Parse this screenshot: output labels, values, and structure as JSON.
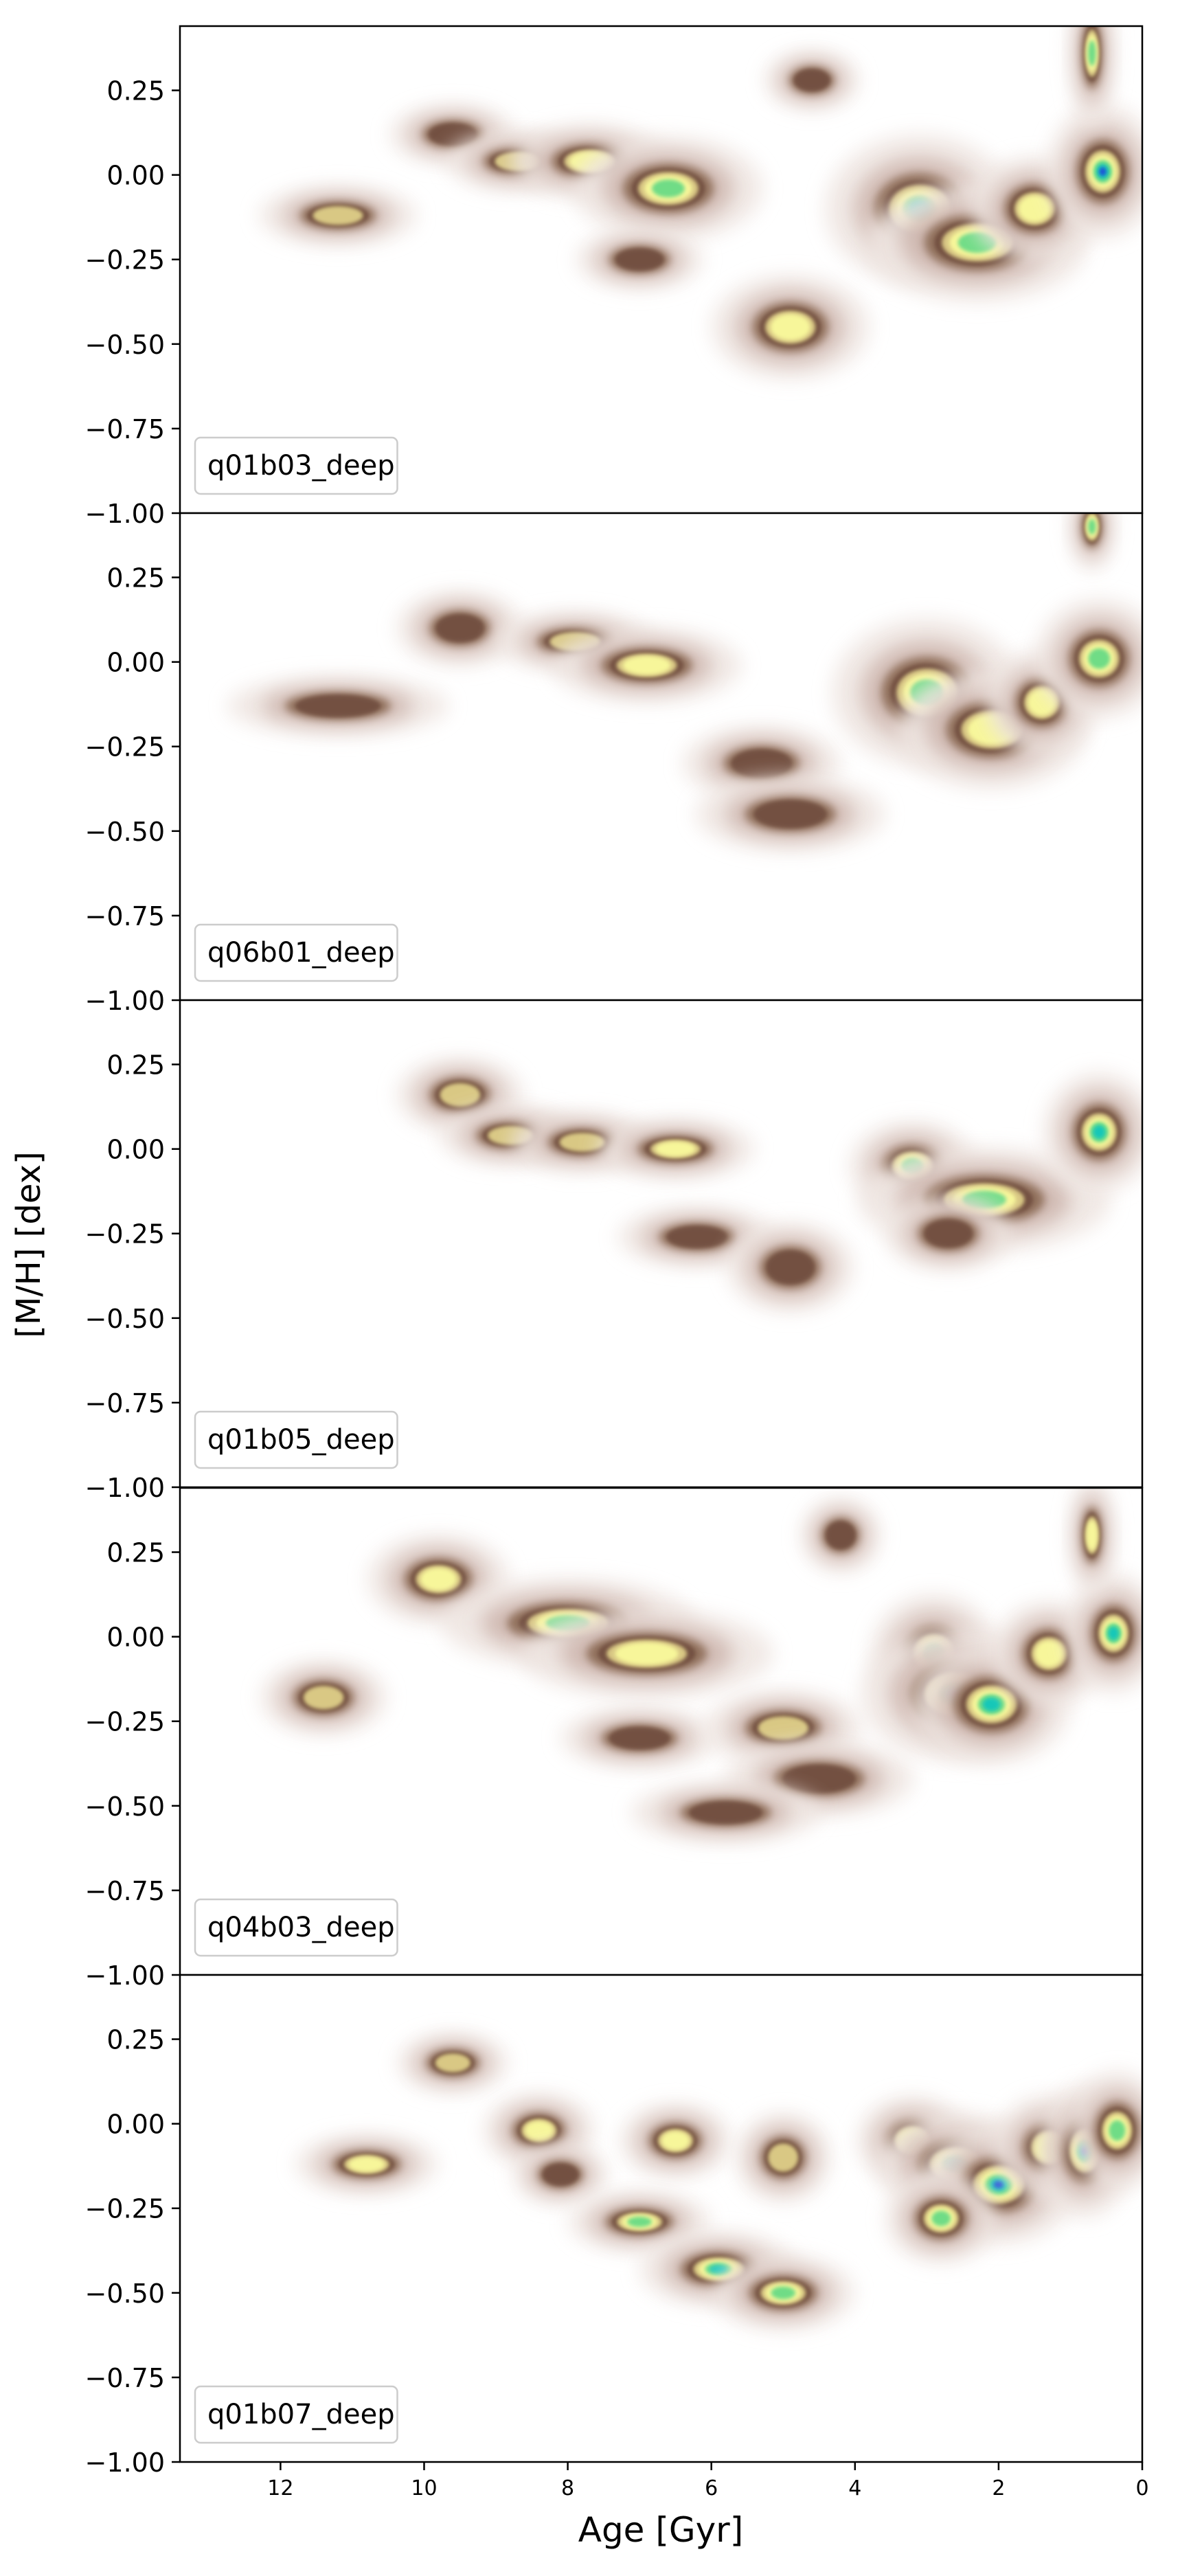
{
  "figure": {
    "ylabel": "[M/H] [dex]",
    "xlabel": "Age [Gyr]"
  },
  "chart_data": {
    "type": "heatmap",
    "xlabel": "Age [Gyr]",
    "ylabel": "[M/H] [dex]",
    "xlim": [
      13.4,
      0
    ],
    "ylim": [
      -1.0,
      0.44
    ],
    "x_ticks": [
      12,
      10,
      8,
      6,
      4,
      2,
      0
    ],
    "x_tick_labels": [
      "12",
      "10",
      "8",
      "6",
      "4",
      "2",
      "0"
    ],
    "y_ticks": [
      0.25,
      0.0,
      -0.25,
      -0.5,
      -0.75,
      -1.0
    ],
    "y_tick_labels": [
      "0.25",
      "0.00",
      "−0.25",
      "−0.50",
      "−0.75",
      "−1.00"
    ],
    "colormap": {
      "stops": [
        "#ffffff",
        "#efe6e2",
        "#c8aea6",
        "#8b6a55",
        "#6e4c3c",
        "#d9c884",
        "#f7f69a",
        "#6fdc86",
        "#16c7b8",
        "#1f4fd8"
      ],
      "description": "low density white through brown and yellow to green and blue at peak"
    },
    "panels": [
      {
        "label": "q01b03_deep",
        "blobs": [
          {
            "age": 11.2,
            "mh": -0.12,
            "w": 0.5,
            "h": 0.04,
            "level": 0.45
          },
          {
            "age": 9.6,
            "mh": 0.12,
            "w": 0.4,
            "h": 0.04,
            "level": 0.35
          },
          {
            "age": 8.7,
            "mh": 0.04,
            "w": 0.45,
            "h": 0.04,
            "level": 0.45
          },
          {
            "age": 7.7,
            "mh": 0.04,
            "w": 0.5,
            "h": 0.05,
            "level": 0.5
          },
          {
            "age": 6.6,
            "mh": -0.04,
            "w": 0.6,
            "h": 0.07,
            "level": 0.6
          },
          {
            "age": 7.0,
            "mh": -0.25,
            "w": 0.4,
            "h": 0.04,
            "level": 0.3
          },
          {
            "age": 4.9,
            "mh": -0.45,
            "w": 0.5,
            "h": 0.07,
            "level": 0.5
          },
          {
            "age": 4.6,
            "mh": 0.28,
            "w": 0.3,
            "h": 0.04,
            "level": 0.3
          },
          {
            "age": 3.1,
            "mh": -0.1,
            "w": 0.6,
            "h": 0.1,
            "level": 0.8
          },
          {
            "age": 2.3,
            "mh": -0.2,
            "w": 0.7,
            "h": 0.08,
            "level": 0.6
          },
          {
            "age": 1.5,
            "mh": -0.1,
            "w": 0.4,
            "h": 0.07,
            "level": 0.55
          },
          {
            "age": 0.55,
            "mh": 0.01,
            "w": 0.35,
            "h": 0.09,
            "level": 0.85
          },
          {
            "age": 0.7,
            "mh": 0.36,
            "w": 0.14,
            "h": 0.1,
            "level": 0.7
          }
        ]
      },
      {
        "label": "q06b01_deep",
        "blobs": [
          {
            "age": 11.2,
            "mh": -0.13,
            "w": 0.7,
            "h": 0.04,
            "level": 0.35
          },
          {
            "age": 9.5,
            "mh": 0.1,
            "w": 0.4,
            "h": 0.05,
            "level": 0.35
          },
          {
            "age": 7.9,
            "mh": 0.06,
            "w": 0.5,
            "h": 0.04,
            "level": 0.45
          },
          {
            "age": 6.9,
            "mh": -0.01,
            "w": 0.6,
            "h": 0.05,
            "level": 0.5
          },
          {
            "age": 5.3,
            "mh": -0.3,
            "w": 0.5,
            "h": 0.05,
            "level": 0.3
          },
          {
            "age": 4.9,
            "mh": -0.45,
            "w": 0.6,
            "h": 0.05,
            "level": 0.35
          },
          {
            "age": 3.0,
            "mh": -0.09,
            "w": 0.6,
            "h": 0.1,
            "level": 0.7
          },
          {
            "age": 2.1,
            "mh": -0.2,
            "w": 0.6,
            "h": 0.08,
            "level": 0.55
          },
          {
            "age": 1.4,
            "mh": -0.12,
            "w": 0.35,
            "h": 0.07,
            "level": 0.5
          },
          {
            "age": 0.6,
            "mh": 0.01,
            "w": 0.4,
            "h": 0.08,
            "level": 0.6
          },
          {
            "age": 0.7,
            "mh": 0.4,
            "w": 0.14,
            "h": 0.06,
            "level": 0.6
          }
        ]
      },
      {
        "label": "q01b05_deep",
        "blobs": [
          {
            "age": 9.5,
            "mh": 0.16,
            "w": 0.4,
            "h": 0.05,
            "level": 0.45
          },
          {
            "age": 8.8,
            "mh": 0.04,
            "w": 0.45,
            "h": 0.04,
            "level": 0.45
          },
          {
            "age": 7.8,
            "mh": 0.02,
            "w": 0.45,
            "h": 0.04,
            "level": 0.45
          },
          {
            "age": 6.5,
            "mh": 0.0,
            "w": 0.5,
            "h": 0.04,
            "level": 0.5
          },
          {
            "age": 6.2,
            "mh": -0.26,
            "w": 0.5,
            "h": 0.04,
            "level": 0.3
          },
          {
            "age": 4.9,
            "mh": -0.35,
            "w": 0.4,
            "h": 0.06,
            "level": 0.35
          },
          {
            "age": 3.2,
            "mh": -0.05,
            "w": 0.4,
            "h": 0.06,
            "level": 0.6
          },
          {
            "age": 2.2,
            "mh": -0.15,
            "w": 0.8,
            "h": 0.07,
            "level": 0.6
          },
          {
            "age": 2.7,
            "mh": -0.25,
            "w": 0.4,
            "h": 0.05,
            "level": 0.35
          },
          {
            "age": 0.6,
            "mh": 0.05,
            "w": 0.35,
            "h": 0.08,
            "level": 0.8
          }
        ]
      },
      {
        "label": "q04b03_deep",
        "blobs": [
          {
            "age": 11.4,
            "mh": -0.18,
            "w": 0.4,
            "h": 0.05,
            "level": 0.4
          },
          {
            "age": 9.8,
            "mh": 0.17,
            "w": 0.45,
            "h": 0.06,
            "level": 0.55
          },
          {
            "age": 8.0,
            "mh": 0.04,
            "w": 0.8,
            "h": 0.06,
            "level": 0.6
          },
          {
            "age": 6.9,
            "mh": -0.05,
            "w": 0.8,
            "h": 0.06,
            "level": 0.55
          },
          {
            "age": 7.0,
            "mh": -0.3,
            "w": 0.5,
            "h": 0.04,
            "level": 0.35
          },
          {
            "age": 5.0,
            "mh": -0.27,
            "w": 0.5,
            "h": 0.05,
            "level": 0.4
          },
          {
            "age": 4.2,
            "mh": 0.3,
            "w": 0.25,
            "h": 0.05,
            "level": 0.35
          },
          {
            "age": 4.5,
            "mh": -0.42,
            "w": 0.6,
            "h": 0.05,
            "level": 0.35
          },
          {
            "age": 5.8,
            "mh": -0.52,
            "w": 0.6,
            "h": 0.04,
            "level": 0.25
          },
          {
            "age": 2.9,
            "mh": -0.05,
            "w": 0.4,
            "h": 0.08,
            "level": 0.7
          },
          {
            "age": 2.6,
            "mh": -0.17,
            "w": 0.6,
            "h": 0.09,
            "level": 0.9
          },
          {
            "age": 2.1,
            "mh": -0.2,
            "w": 0.5,
            "h": 0.08,
            "level": 0.8
          },
          {
            "age": 1.3,
            "mh": -0.05,
            "w": 0.35,
            "h": 0.07,
            "level": 0.55
          },
          {
            "age": 0.4,
            "mh": 0.01,
            "w": 0.3,
            "h": 0.08,
            "level": 0.8
          },
          {
            "age": 0.7,
            "mh": 0.3,
            "w": 0.14,
            "h": 0.08,
            "level": 0.55
          }
        ]
      },
      {
        "label": "q01b07_deep",
        "blobs": [
          {
            "age": 10.8,
            "mh": -0.12,
            "w": 0.45,
            "h": 0.04,
            "level": 0.5
          },
          {
            "age": 9.6,
            "mh": 0.18,
            "w": 0.35,
            "h": 0.04,
            "level": 0.4
          },
          {
            "age": 8.4,
            "mh": -0.02,
            "w": 0.35,
            "h": 0.05,
            "level": 0.55
          },
          {
            "age": 8.1,
            "mh": -0.15,
            "w": 0.3,
            "h": 0.04,
            "level": 0.35
          },
          {
            "age": 6.5,
            "mh": -0.05,
            "w": 0.35,
            "h": 0.05,
            "level": 0.55
          },
          {
            "age": 7.0,
            "mh": -0.29,
            "w": 0.45,
            "h": 0.04,
            "level": 0.6
          },
          {
            "age": 5.0,
            "mh": -0.1,
            "w": 0.3,
            "h": 0.06,
            "level": 0.4
          },
          {
            "age": 5.9,
            "mh": -0.43,
            "w": 0.5,
            "h": 0.05,
            "level": 0.75
          },
          {
            "age": 5.0,
            "mh": -0.5,
            "w": 0.45,
            "h": 0.05,
            "level": 0.65
          },
          {
            "age": 3.2,
            "mh": -0.05,
            "w": 0.35,
            "h": 0.06,
            "level": 0.5
          },
          {
            "age": 2.6,
            "mh": -0.12,
            "w": 0.5,
            "h": 0.07,
            "level": 0.75
          },
          {
            "age": 2.0,
            "mh": -0.18,
            "w": 0.5,
            "h": 0.08,
            "level": 0.85
          },
          {
            "age": 2.8,
            "mh": -0.28,
            "w": 0.35,
            "h": 0.06,
            "level": 0.6
          },
          {
            "age": 1.3,
            "mh": -0.07,
            "w": 0.35,
            "h": 0.07,
            "level": 0.5
          },
          {
            "age": 0.8,
            "mh": -0.08,
            "w": 0.3,
            "h": 0.09,
            "level": 0.85
          },
          {
            "age": 0.35,
            "mh": -0.02,
            "w": 0.3,
            "h": 0.08,
            "level": 0.6
          }
        ]
      }
    ]
  }
}
